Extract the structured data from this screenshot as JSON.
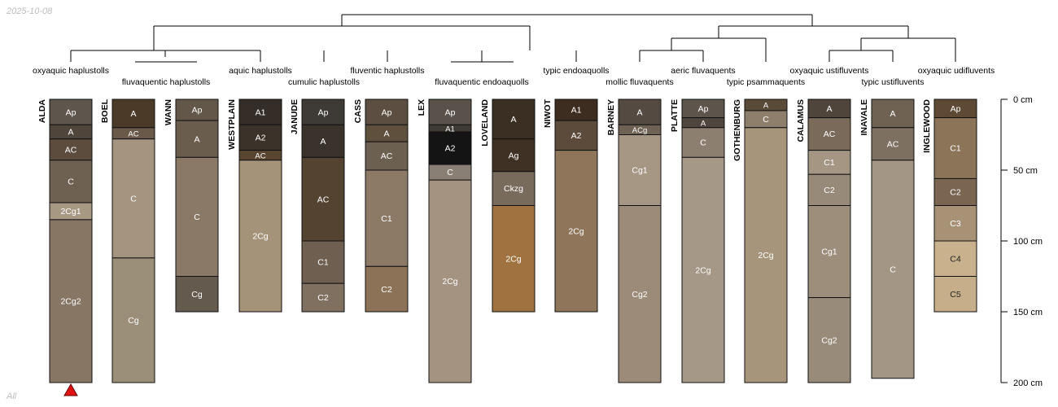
{
  "header": {
    "date_stamp": "2025-10-08"
  },
  "footer": {
    "group_label": "All"
  },
  "profiles": [
    {
      "name": "ALDA",
      "depth": 200,
      "horizons": [
        {
          "name": "Ap",
          "top": 0,
          "bottom": 18,
          "color": "#5e554c"
        },
        {
          "name": "A",
          "top": 18,
          "bottom": 28,
          "color": "#4f453b"
        },
        {
          "name": "AC",
          "top": 28,
          "bottom": 43,
          "color": "#5b4c3d"
        },
        {
          "name": "C",
          "top": 43,
          "bottom": 73,
          "color": "#6e6152"
        },
        {
          "name": "2Cg1",
          "top": 73,
          "bottom": 85,
          "color": "#a69882"
        },
        {
          "name": "2Cg2",
          "top": 85,
          "bottom": 200,
          "color": "#867663"
        }
      ]
    },
    {
      "name": "BOEL",
      "depth": 200,
      "horizons": [
        {
          "name": "A",
          "top": 0,
          "bottom": 20,
          "color": "#4c3a29"
        },
        {
          "name": "AC",
          "top": 20,
          "bottom": 28,
          "color": "#6a5948"
        },
        {
          "name": "C",
          "top": 28,
          "bottom": 112,
          "color": "#a49480"
        },
        {
          "name": "Cg",
          "top": 112,
          "bottom": 200,
          "color": "#9b8f79"
        }
      ]
    },
    {
      "name": "WANN",
      "depth": 150,
      "horizons": [
        {
          "name": "Ap",
          "top": 0,
          "bottom": 15,
          "color": "#625749"
        },
        {
          "name": "A",
          "top": 15,
          "bottom": 41,
          "color": "#6b5d4d"
        },
        {
          "name": "C",
          "top": 41,
          "bottom": 125,
          "color": "#8a7967"
        },
        {
          "name": "Cg",
          "top": 125,
          "bottom": 150,
          "color": "#645a4e"
        }
      ]
    },
    {
      "name": "WESTPLAIN",
      "depth": 150,
      "horizons": [
        {
          "name": "A1",
          "top": 0,
          "bottom": 18,
          "color": "#352d27"
        },
        {
          "name": "A2",
          "top": 18,
          "bottom": 36,
          "color": "#3b3229"
        },
        {
          "name": "AC",
          "top": 36,
          "bottom": 43,
          "color": "#5a4630"
        },
        {
          "name": "2Cg",
          "top": 43,
          "bottom": 150,
          "color": "#a59379"
        }
      ]
    },
    {
      "name": "JANUDE",
      "depth": 150,
      "horizons": [
        {
          "name": "Ap",
          "top": 0,
          "bottom": 18,
          "color": "#3e3a35"
        },
        {
          "name": "A",
          "top": 18,
          "bottom": 41,
          "color": "#3a332c"
        },
        {
          "name": "AC",
          "top": 41,
          "bottom": 100,
          "color": "#544331"
        },
        {
          "name": "C1",
          "top": 100,
          "bottom": 130,
          "color": "#6e5f50"
        },
        {
          "name": "C2",
          "top": 130,
          "bottom": 150,
          "color": "#807060"
        }
      ]
    },
    {
      "name": "CASS",
      "depth": 150,
      "horizons": [
        {
          "name": "Ap",
          "top": 0,
          "bottom": 18,
          "color": "#5c4f41"
        },
        {
          "name": "A",
          "top": 18,
          "bottom": 30,
          "color": "#5f4f3d"
        },
        {
          "name": "AC",
          "top": 30,
          "bottom": 50,
          "color": "#6c6051"
        },
        {
          "name": "C1",
          "top": 50,
          "bottom": 118,
          "color": "#8c7a66"
        },
        {
          "name": "C2",
          "top": 118,
          "bottom": 150,
          "color": "#8c7357"
        }
      ]
    },
    {
      "name": "LEX",
      "depth": 200,
      "horizons": [
        {
          "name": "Ap",
          "top": 0,
          "bottom": 18,
          "color": "#5a514a"
        },
        {
          "name": "A1",
          "top": 18,
          "bottom": 23,
          "color": "#3f3a34"
        },
        {
          "name": "A2",
          "top": 23,
          "bottom": 46,
          "color": "#141414"
        },
        {
          "name": "C",
          "top": 46,
          "bottom": 57,
          "color": "#8a7f74"
        },
        {
          "name": "2Cg",
          "top": 57,
          "bottom": 200,
          "color": "#a39380"
        }
      ]
    },
    {
      "name": "LOVELAND",
      "depth": 150,
      "horizons": [
        {
          "name": "A",
          "top": 0,
          "bottom": 28,
          "color": "#3b2e22"
        },
        {
          "name": "Ag",
          "top": 28,
          "bottom": 51,
          "color": "#3f3124"
        },
        {
          "name": "Ckzg",
          "top": 51,
          "bottom": 75,
          "color": "#796b5c"
        },
        {
          "name": "2Cg",
          "top": 75,
          "bottom": 150,
          "color": "#a0723f"
        }
      ]
    },
    {
      "name": "NIWOT",
      "depth": 150,
      "horizons": [
        {
          "name": "A1",
          "top": 0,
          "bottom": 15,
          "color": "#3d2c20"
        },
        {
          "name": "A2",
          "top": 15,
          "bottom": 36,
          "color": "#5c4a3a"
        },
        {
          "name": "2Cg",
          "top": 36,
          "bottom": 150,
          "color": "#8f765b"
        }
      ]
    },
    {
      "name": "BARNEY",
      "depth": 200,
      "horizons": [
        {
          "name": "A",
          "top": 0,
          "bottom": 18,
          "color": "#544a41"
        },
        {
          "name": "ACg",
          "top": 18,
          "bottom": 25,
          "color": "#6e6255"
        },
        {
          "name": "Cg1",
          "top": 25,
          "bottom": 75,
          "color": "#a69684"
        },
        {
          "name": "Cg2",
          "top": 75,
          "bottom": 200,
          "color": "#9b8b78"
        }
      ]
    },
    {
      "name": "PLATTE",
      "depth": 200,
      "horizons": [
        {
          "name": "Ap",
          "top": 0,
          "bottom": 13,
          "color": "#5d544b"
        },
        {
          "name": "A",
          "top": 13,
          "bottom": 20,
          "color": "#4e463e"
        },
        {
          "name": "C",
          "top": 20,
          "bottom": 41,
          "color": "#8d7f70"
        },
        {
          "name": "2Cg",
          "top": 41,
          "bottom": 200,
          "color": "#a59886"
        }
      ]
    },
    {
      "name": "GOTHENBURG",
      "depth": 200,
      "horizons": [
        {
          "name": "A",
          "top": 0,
          "bottom": 8,
          "color": "#5a4a38"
        },
        {
          "name": "C",
          "top": 8,
          "bottom": 20,
          "color": "#8e7f6d"
        },
        {
          "name": "2Cg",
          "top": 20,
          "bottom": 200,
          "color": "#a6957a"
        }
      ]
    },
    {
      "name": "CALAMUS",
      "depth": 200,
      "horizons": [
        {
          "name": "A",
          "top": 0,
          "bottom": 13,
          "color": "#4f453b"
        },
        {
          "name": "AC",
          "top": 13,
          "bottom": 36,
          "color": "#7a6a59"
        },
        {
          "name": "C1",
          "top": 36,
          "bottom": 53,
          "color": "#a49683"
        },
        {
          "name": "C2",
          "top": 53,
          "bottom": 75,
          "color": "#988a78"
        },
        {
          "name": "Cg1",
          "top": 75,
          "bottom": 140,
          "color": "#9d8e7c"
        },
        {
          "name": "Cg2",
          "top": 140,
          "bottom": 200,
          "color": "#998b7a"
        }
      ]
    },
    {
      "name": "INAVALE",
      "depth": 197,
      "horizons": [
        {
          "name": "A",
          "top": 0,
          "bottom": 20,
          "color": "#6f6253"
        },
        {
          "name": "AC",
          "top": 20,
          "bottom": 43,
          "color": "#7e7061"
        },
        {
          "name": "C",
          "top": 43,
          "bottom": 197,
          "color": "#a39684"
        }
      ]
    },
    {
      "name": "INGLEWOOD",
      "depth": 150,
      "horizons": [
        {
          "name": "Ap",
          "top": 0,
          "bottom": 13,
          "color": "#5e4a34"
        },
        {
          "name": "C1",
          "top": 13,
          "bottom": 56,
          "color": "#8b7457"
        },
        {
          "name": "C2",
          "top": 56,
          "bottom": 75,
          "color": "#7a6550"
        },
        {
          "name": "C3",
          "top": 75,
          "bottom": 100,
          "color": "#a89275"
        },
        {
          "name": "C4",
          "top": 100,
          "bottom": 125,
          "color": "#c9b18d"
        },
        {
          "name": "C5",
          "top": 125,
          "bottom": 150,
          "color": "#c7ae8a"
        }
      ]
    }
  ],
  "taxa": [
    "oxyaquic haplustolls",
    "fluvaquentic haplustolls",
    "aquic haplustolls",
    "cumulic haplustolls",
    "fluventic haplustolls",
    "fluvaquentic endoaquolls",
    "typic endoaquolls",
    "mollic fluvaquents",
    "aeric fluvaquents",
    "typic psammaquents",
    "oxyaquic ustifluvents",
    "typic ustifluvents",
    "oxyaquic udifluvents"
  ],
  "depth_axis": {
    "unit": "cm",
    "ticks": [
      {
        "value": 0,
        "label": "0 cm"
      },
      {
        "value": 50,
        "label": "50 cm"
      },
      {
        "value": 100,
        "label": "100 cm"
      },
      {
        "value": 150,
        "label": "150 cm"
      },
      {
        "value": 200,
        "label": "200 cm"
      }
    ]
  },
  "marker": {
    "profile": "ALDA",
    "color": "#e01010"
  }
}
